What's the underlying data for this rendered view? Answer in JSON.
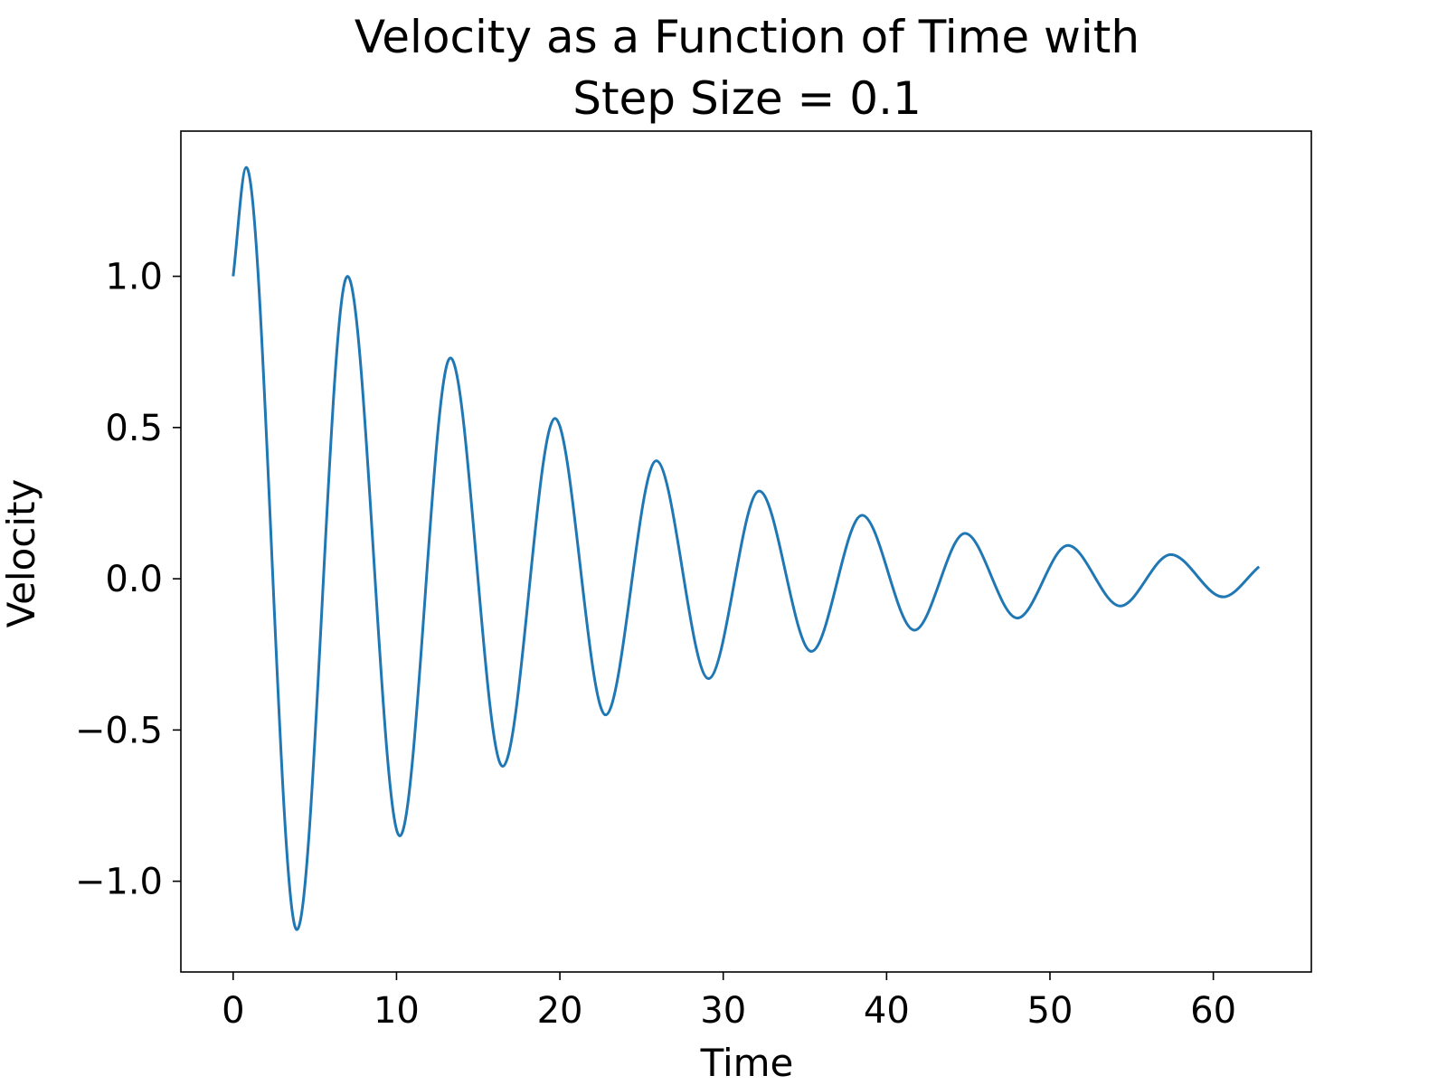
{
  "chart_data": {
    "type": "line",
    "title_lines": [
      "Velocity as a Function of Time with",
      "Step Size = 0.1"
    ],
    "xlabel": "Time",
    "ylabel": "Velocity",
    "xlim": [
      -3.2,
      66
    ],
    "ylim": [
      -1.3,
      1.48
    ],
    "xticks": [
      {
        "value": 0,
        "label": "0"
      },
      {
        "value": 10,
        "label": "10"
      },
      {
        "value": 20,
        "label": "20"
      },
      {
        "value": 30,
        "label": "30"
      },
      {
        "value": 40,
        "label": "40"
      },
      {
        "value": 50,
        "label": "50"
      },
      {
        "value": 60,
        "label": "60"
      }
    ],
    "yticks": [
      {
        "value": -1.0,
        "label": "−1.0"
      },
      {
        "value": -0.5,
        "label": "−0.5"
      },
      {
        "value": 0.0,
        "label": "0.0"
      },
      {
        "value": 0.5,
        "label": "0.5"
      },
      {
        "value": 1.0,
        "label": "1.0"
      }
    ],
    "grid": false,
    "legend": "none",
    "line_color": "#1f77b4",
    "series": [
      {
        "x": [
          0,
          0.8,
          3.9,
          7.0,
          10.2,
          13.3,
          16.5,
          19.7,
          22.8,
          25.9,
          29.1,
          32.2,
          35.4,
          38.5,
          41.7,
          44.8,
          48.0,
          51.1,
          54.3,
          57.4,
          60.6,
          62.8
        ],
        "values": [
          1.0,
          1.36,
          -1.16,
          1.0,
          -0.85,
          0.73,
          -0.62,
          0.53,
          -0.45,
          0.39,
          -0.33,
          0.29,
          -0.24,
          0.21,
          -0.17,
          0.15,
          -0.13,
          0.11,
          -0.09,
          0.08,
          -0.06,
          0.04
        ]
      }
    ]
  }
}
